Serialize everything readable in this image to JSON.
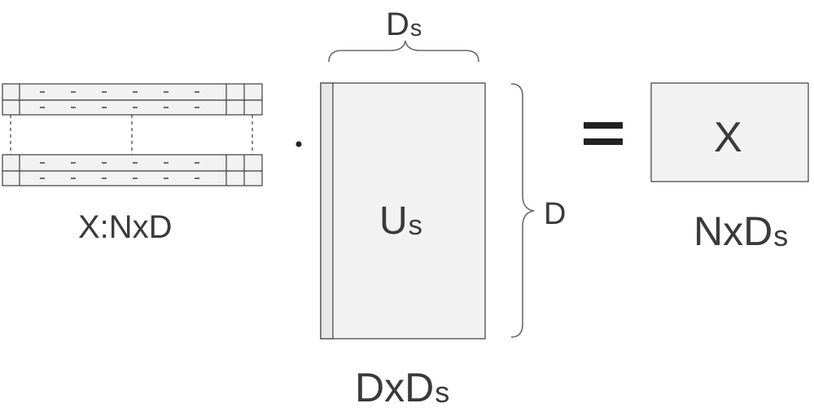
{
  "diagram": {
    "x_matrix_label": "X:NxD",
    "us_matrix_label": {
      "main": "U",
      "sub": "s"
    },
    "us_dims_label": {
      "main": "DxD",
      "sub": "s"
    },
    "ds_brace_label": {
      "main": "D",
      "sub": "s"
    },
    "d_brace_label": "D",
    "result_matrix_label": "X",
    "result_dims_label": {
      "main": "NxD",
      "sub": "s"
    },
    "dot_operator": "·",
    "equals_operator": "=",
    "colors": {
      "stroke": "#4a4a4a",
      "fill": "#f2f2f2",
      "text": "#3a3a3a"
    }
  }
}
